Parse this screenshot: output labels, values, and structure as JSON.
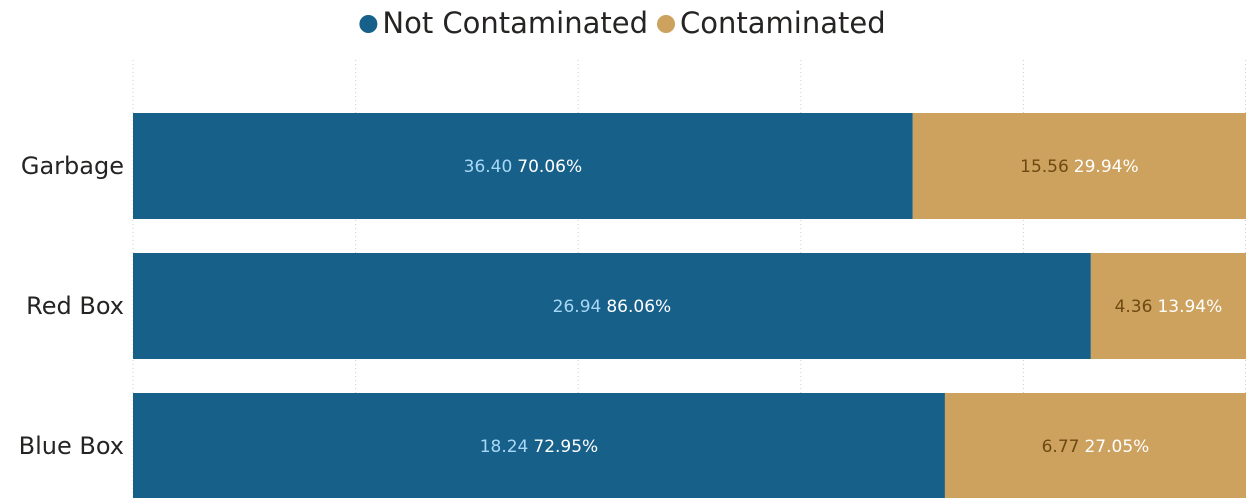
{
  "chart_data": {
    "type": "stacked-bar-100",
    "orientation": "horizontal",
    "categories": [
      "Garbage",
      "Red Box",
      "Blue Box"
    ],
    "series": [
      {
        "name": "Not Contaminated",
        "color": "#17608a",
        "label_color": "#a8d8f5",
        "values": [
          36.4,
          26.94,
          18.24
        ],
        "value_labels": [
          "36.40",
          "26.94",
          "18.24"
        ],
        "shares": [
          70.06,
          86.06,
          72.95
        ],
        "share_labels": [
          "70.06%",
          "86.06%",
          "72.95%"
        ]
      },
      {
        "name": "Contaminated",
        "color": "#cda15e",
        "label_color": "#6e4a12",
        "values": [
          15.56,
          4.36,
          6.77
        ],
        "value_labels": [
          "15.56",
          "4.36",
          "6.77"
        ],
        "shares": [
          29.94,
          13.94,
          27.05
        ],
        "share_labels": [
          "29.94%",
          "13.94%",
          "27.05%"
        ]
      }
    ],
    "xlim": [
      0,
      100
    ],
    "xticks": [
      0,
      20,
      40,
      60,
      80,
      100
    ],
    "grid": true,
    "legend": "top"
  }
}
